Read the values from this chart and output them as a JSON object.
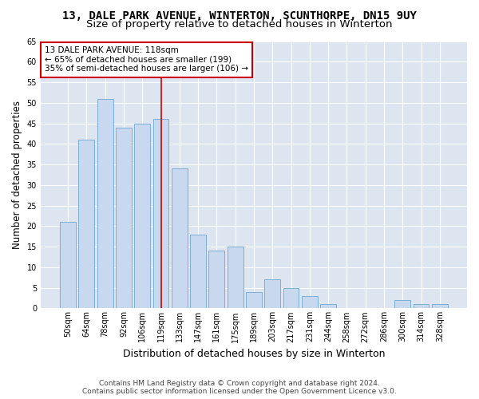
{
  "title": "13, DALE PARK AVENUE, WINTERTON, SCUNTHORPE, DN15 9UY",
  "subtitle": "Size of property relative to detached houses in Winterton",
  "xlabel": "Distribution of detached houses by size in Winterton",
  "ylabel": "Number of detached properties",
  "categories": [
    "50sqm",
    "64sqm",
    "78sqm",
    "92sqm",
    "106sqm",
    "119sqm",
    "133sqm",
    "147sqm",
    "161sqm",
    "175sqm",
    "189sqm",
    "203sqm",
    "217sqm",
    "231sqm",
    "244sqm",
    "258sqm",
    "272sqm",
    "286sqm",
    "300sqm",
    "314sqm",
    "328sqm"
  ],
  "values": [
    21,
    41,
    51,
    44,
    45,
    46,
    34,
    18,
    14,
    15,
    4,
    7,
    5,
    3,
    1,
    0,
    0,
    0,
    2,
    1,
    1
  ],
  "bar_color": "#c8d8ee",
  "bar_edge_color": "#7bafd4",
  "highlight_index": 5,
  "highlight_line_color": "#cc0000",
  "annotation_text": "13 DALE PARK AVENUE: 118sqm\n← 65% of detached houses are smaller (199)\n35% of semi-detached houses are larger (106) →",
  "annotation_box_facecolor": "#ffffff",
  "annotation_box_edgecolor": "#cc0000",
  "ylim": [
    0,
    65
  ],
  "yticks": [
    0,
    5,
    10,
    15,
    20,
    25,
    30,
    35,
    40,
    45,
    50,
    55,
    60,
    65
  ],
  "background_color": "#dde6f0",
  "grid_color": "#ffffff",
  "fig_facecolor": "#ffffff",
  "footer_line1": "Contains HM Land Registry data © Crown copyright and database right 2024.",
  "footer_line2": "Contains public sector information licensed under the Open Government Licence v3.0.",
  "title_fontsize": 10,
  "subtitle_fontsize": 9.5,
  "tick_fontsize": 7,
  "ylabel_fontsize": 8.5,
  "xlabel_fontsize": 9,
  "annotation_fontsize": 7.5,
  "footer_fontsize": 6.5
}
